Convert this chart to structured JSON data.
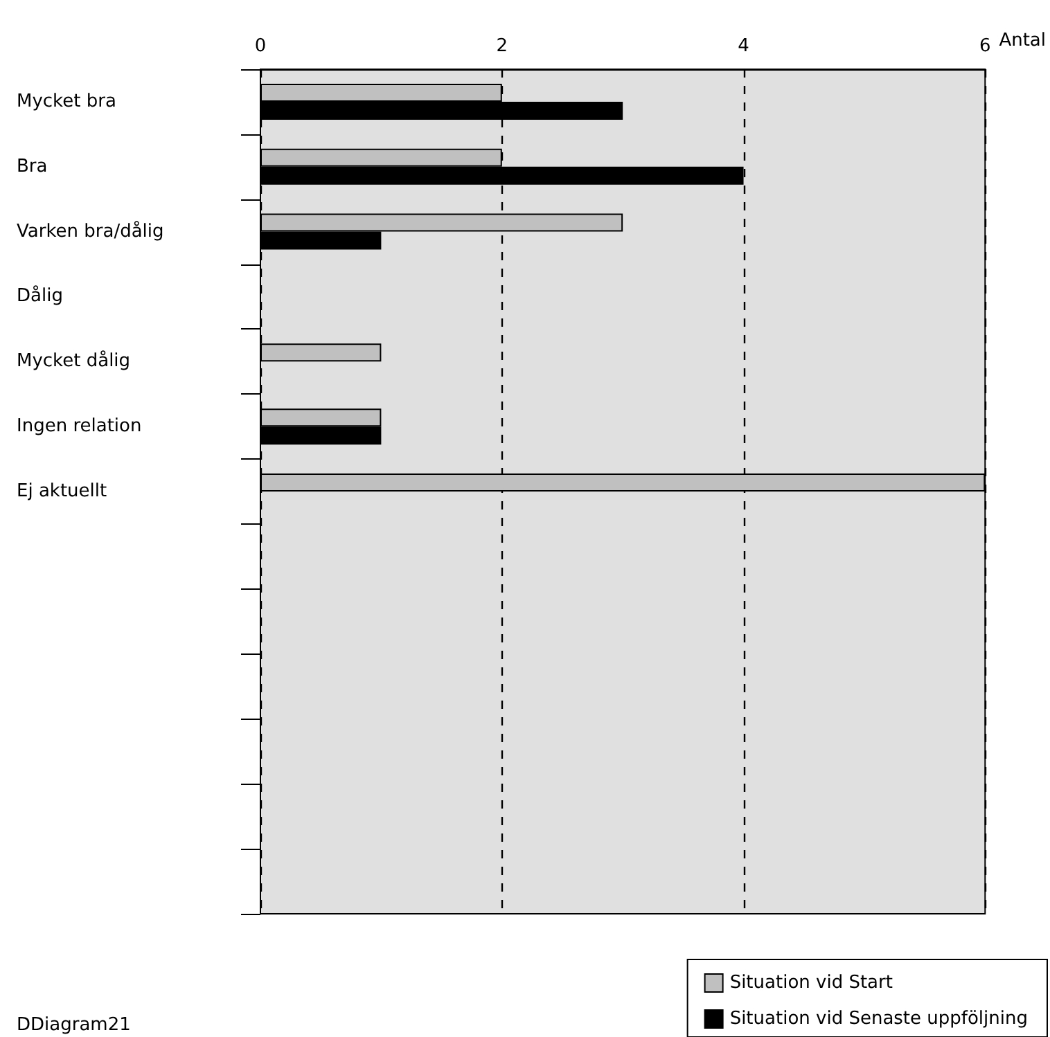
{
  "chart_data": {
    "type": "bar",
    "orientation": "horizontal",
    "xlabel": "Antal",
    "categories": [
      "Mycket bra",
      "Bra",
      "Varken bra/dålig",
      "Dålig",
      "Mycket dålig",
      "Ingen relation",
      "Ej aktuellt"
    ],
    "series": [
      {
        "name": "Situation vid Start",
        "color": "#c0c0c0",
        "values": [
          2,
          2,
          3,
          null,
          1,
          1,
          6
        ]
      },
      {
        "name": "Situation vid Senaste uppföljning",
        "color": "#000000",
        "values": [
          3,
          4,
          1,
          null,
          null,
          1,
          null
        ]
      }
    ],
    "xlim": [
      0,
      6
    ],
    "xticks": [
      0,
      2,
      4,
      6
    ],
    "grid": "x",
    "legend": "bottom right",
    "annotations": [
      "DDiagram21"
    ]
  }
}
